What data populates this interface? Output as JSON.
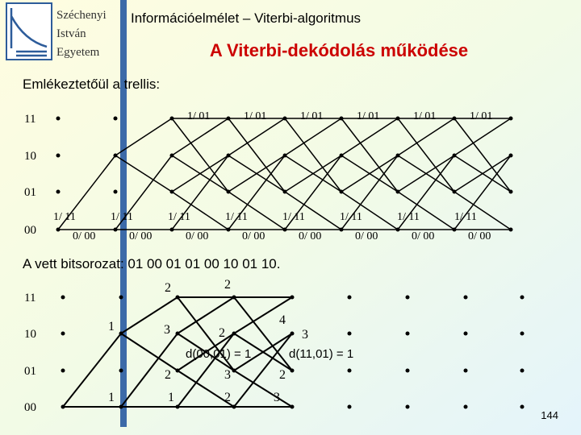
{
  "header": {
    "logo_lines": [
      "Széchenyi",
      "István",
      "Egyetem"
    ],
    "course": "Információelmélet – Viterbi-algoritmus",
    "title": "A Viterbi-dekódolás működése"
  },
  "reminder": "Emlékeztetőül a trellis:",
  "trellis": {
    "states": [
      "11",
      "10",
      "01",
      "00"
    ],
    "labels_1_01": [
      "1/ 01",
      "1/ 01",
      "1/ 01",
      "1/ 01",
      "1/ 01",
      "1/ 01"
    ],
    "labels_1_11": [
      "1/ 11",
      "1/ 11",
      "1/ 11",
      "1/ 11",
      "1/ 11",
      "1/ 11",
      "1/ 11",
      "1/ 11"
    ],
    "labels_0_00": [
      "0/ 00",
      "0/ 00",
      "0/ 00",
      "0/ 00",
      "0/ 00",
      "0/ 00",
      "0/ 00",
      "0/ 00"
    ]
  },
  "received": "A vett bitsorozat: 01 00 01 01 00 10 01 10.",
  "decoding": {
    "states": [
      "11",
      "10",
      "01",
      "00"
    ],
    "metrics": [
      "1",
      "1",
      "2",
      "3",
      "2",
      "1",
      "2",
      "2",
      "3",
      "2",
      "4",
      "3",
      "2",
      "3"
    ],
    "formulas": [
      "d(00,01) = 1",
      "d(11,01) = 1"
    ]
  },
  "page_number": "144"
}
